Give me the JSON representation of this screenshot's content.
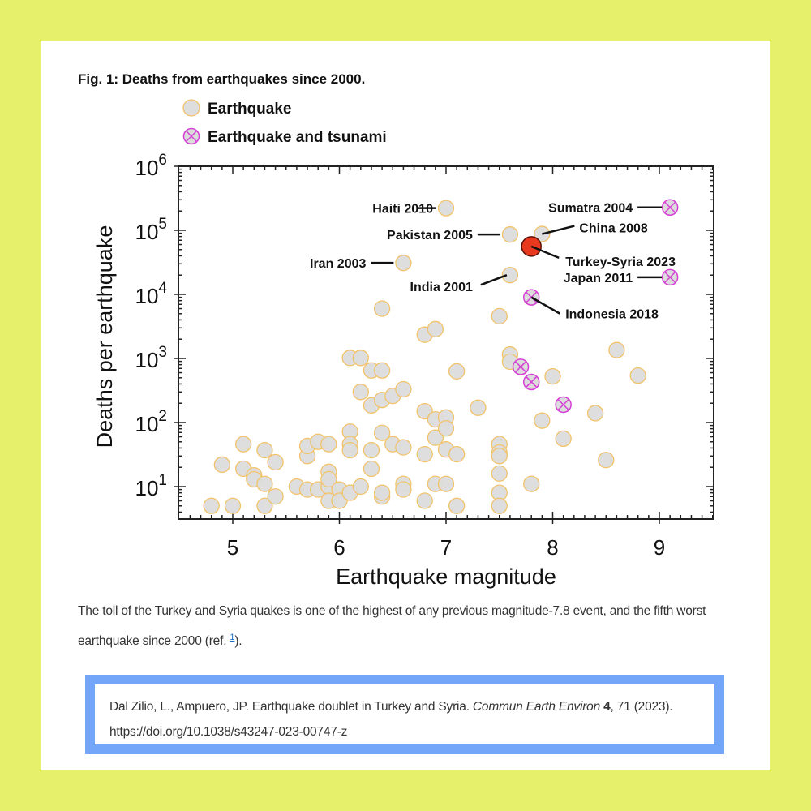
{
  "figure": {
    "title": "Fig. 1: Deaths from earthquakes since 2000.",
    "caption_text": "The toll of the Turkey and Syria quakes is one of the highest of any previous magnitude-7.8 event, and the fifth worst earthquake since 2000 (ref. ",
    "caption_ref": "1",
    "caption_end": ")."
  },
  "citation": {
    "authors_title": "Dal Zilio, L., Ampuero, JP. Earthquake doublet in Turkey and Syria. ",
    "journal": "Commun Earth Environ",
    "volume": "4",
    "rest": ", 71 (2023). https://doi.org/10.1038/s43247-023-00747-z"
  },
  "colors": {
    "earthquake_fill": "#dcdcdc",
    "earthquake_stroke": "#f2c36b",
    "tsunami_stroke": "#d63fd6",
    "highlight": "#e8391f"
  },
  "chart_data": {
    "type": "scatter",
    "xlabel": "Earthquake magnitude",
    "ylabel": "Deaths per earthquake",
    "xlim": [
      4.6,
      9.5
    ],
    "ylim": [
      3.5,
      1000000
    ],
    "yscale": "log",
    "x_ticks": [
      "5",
      "6",
      "7",
      "8",
      "9"
    ],
    "y_ticks": [
      {
        "base": "10",
        "exp": "1"
      },
      {
        "base": "10",
        "exp": "2"
      },
      {
        "base": "10",
        "exp": "3"
      },
      {
        "base": "10",
        "exp": "4"
      },
      {
        "base": "10",
        "exp": "5"
      },
      {
        "base": "10",
        "exp": "6"
      }
    ],
    "legend": [
      {
        "label": "Earthquake",
        "type": "earthquake"
      },
      {
        "label": "Earthquake and tsunami",
        "type": "tsunami"
      }
    ],
    "legend_position": "top-left",
    "series": [
      {
        "name": "Earthquake",
        "points": [
          [
            4.8,
            5
          ],
          [
            5.0,
            5
          ],
          [
            5.3,
            5
          ],
          [
            4.9,
            22
          ],
          [
            5.1,
            46
          ],
          [
            5.1,
            19
          ],
          [
            5.2,
            15
          ],
          [
            5.2,
            13
          ],
          [
            5.3,
            37
          ],
          [
            5.3,
            11
          ],
          [
            5.4,
            24
          ],
          [
            5.4,
            7
          ],
          [
            5.6,
            10
          ],
          [
            5.7,
            30
          ],
          [
            5.7,
            43
          ],
          [
            5.8,
            50
          ],
          [
            5.7,
            9
          ],
          [
            5.8,
            9
          ],
          [
            5.9,
            46
          ],
          [
            5.9,
            10
          ],
          [
            5.9,
            17
          ],
          [
            5.9,
            13
          ],
          [
            5.9,
            6
          ],
          [
            6.0,
            9
          ],
          [
            6.0,
            6
          ],
          [
            6.1,
            8
          ],
          [
            6.1,
            72
          ],
          [
            6.1,
            46
          ],
          [
            6.1,
            37
          ],
          [
            6.2,
            10
          ],
          [
            6.1,
            1020
          ],
          [
            6.2,
            1020
          ],
          [
            6.3,
            650
          ],
          [
            6.2,
            300
          ],
          [
            6.3,
            185
          ],
          [
            6.3,
            19
          ],
          [
            6.3,
            37
          ],
          [
            6.4,
            650
          ],
          [
            6.4,
            225
          ],
          [
            6.4,
            69
          ],
          [
            6.4,
            7
          ],
          [
            6.4,
            8
          ],
          [
            6.5,
            260
          ],
          [
            6.5,
            46
          ],
          [
            6.6,
            330
          ],
          [
            6.6,
            41
          ],
          [
            6.6,
            11
          ],
          [
            6.6,
            9
          ],
          [
            6.4,
            6000
          ],
          [
            6.8,
            2350
          ],
          [
            6.9,
            2870
          ],
          [
            6.8,
            150
          ],
          [
            6.8,
            32
          ],
          [
            6.8,
            6
          ],
          [
            6.9,
            112
          ],
          [
            6.9,
            58
          ],
          [
            7.0,
            120
          ],
          [
            7.0,
            81
          ],
          [
            7.0,
            38
          ],
          [
            6.9,
            11
          ],
          [
            7.0,
            11
          ],
          [
            7.1,
            5
          ],
          [
            7.1,
            32
          ],
          [
            7.1,
            630
          ],
          [
            7.3,
            170
          ],
          [
            7.5,
            4570
          ],
          [
            7.5,
            46
          ],
          [
            7.5,
            34
          ],
          [
            7.5,
            30
          ],
          [
            7.5,
            16
          ],
          [
            7.5,
            8
          ],
          [
            7.5,
            5
          ],
          [
            7.6,
            1150
          ],
          [
            7.6,
            890
          ],
          [
            7.8,
            11
          ],
          [
            7.9,
            107
          ],
          [
            8.0,
            525
          ],
          [
            8.1,
            56
          ],
          [
            8.4,
            140
          ],
          [
            8.5,
            26
          ],
          [
            8.6,
            1350
          ],
          [
            8.8,
            540
          ],
          [
            7.0,
            222000
          ],
          [
            7.6,
            86000
          ],
          [
            7.9,
            87600
          ],
          [
            6.6,
            31000
          ],
          [
            7.6,
            20000
          ]
        ]
      },
      {
        "name": "Earthquake and tsunami",
        "points": [
          [
            9.1,
            228000
          ],
          [
            9.1,
            18500
          ],
          [
            7.8,
            9000
          ],
          [
            7.7,
            740
          ],
          [
            7.8,
            430
          ],
          [
            8.1,
            190
          ]
        ]
      },
      {
        "name": "Turkey-Syria 2023",
        "points": [
          [
            7.8,
            56000
          ]
        ]
      }
    ],
    "annotations": [
      {
        "label": "Haiti 2010",
        "x": 7.0,
        "y": 222000
      },
      {
        "label": "Pakistan 2005",
        "x": 7.6,
        "y": 86000
      },
      {
        "label": "China 2008",
        "x": 7.9,
        "y": 87600
      },
      {
        "label": "Iran 2003",
        "x": 6.6,
        "y": 31000
      },
      {
        "label": "Turkey-Syria 2023",
        "x": 7.8,
        "y": 56000
      },
      {
        "label": "India 2001",
        "x": 7.6,
        "y": 20000
      },
      {
        "label": "Sumatra 2004",
        "x": 9.1,
        "y": 228000
      },
      {
        "label": "Japan 2011",
        "x": 9.1,
        "y": 18500
      },
      {
        "label": "Indonesia 2018",
        "x": 7.8,
        "y": 9000
      }
    ]
  }
}
